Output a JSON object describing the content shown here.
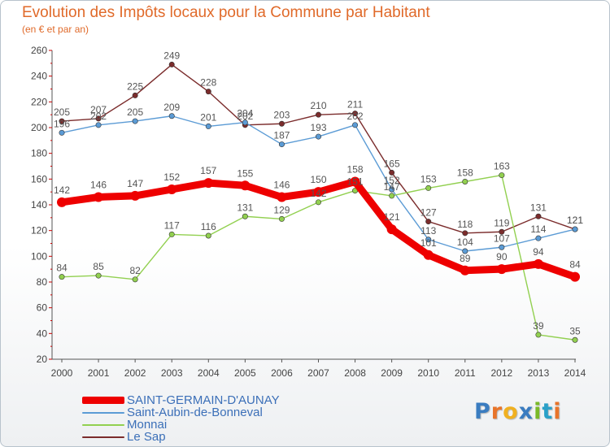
{
  "title": "Evolution des Impôts locaux pour la Commune par Habitant",
  "subtitle": "(en € et par an)",
  "logo": {
    "text": "Proxiti",
    "colors": [
      "#3a7cc0",
      "#e8742a",
      "#f0b020",
      "#3a7cc0",
      "#7ab928",
      "#2aa0c8",
      "#e8742a"
    ]
  },
  "chart_data": {
    "type": "line",
    "x": [
      "2000",
      "2001",
      "2002",
      "2003",
      "2004",
      "2005",
      "2006",
      "2007",
      "2008",
      "2009",
      "2010",
      "2011",
      "2012",
      "2013",
      "2014"
    ],
    "ylim": [
      20,
      260
    ],
    "yticks": [
      20,
      40,
      60,
      80,
      100,
      120,
      140,
      160,
      180,
      200,
      220,
      240,
      260
    ],
    "xlabel": "",
    "ylabel": "",
    "grid": false,
    "series": [
      {
        "name": "SAINT-GERMAIN-D'AUNAY",
        "color": "#ee0000",
        "emphasis": true,
        "values": [
          142,
          146,
          147,
          152,
          157,
          155,
          146,
          150,
          158,
          121,
          101,
          89,
          90,
          94,
          84
        ]
      },
      {
        "name": "Saint-Aubin-de-Bonneval",
        "color": "#5b9bd5",
        "emphasis": false,
        "values": [
          196,
          202,
          205,
          209,
          201,
          204,
          187,
          193,
          202,
          152,
          113,
          104,
          107,
          114,
          121
        ]
      },
      {
        "name": "Monnai",
        "color": "#92d050",
        "emphasis": false,
        "values": [
          84,
          85,
          82,
          117,
          116,
          131,
          129,
          142,
          151,
          147,
          153,
          158,
          163,
          39,
          35
        ]
      },
      {
        "name": "Le Sap",
        "color": "#7b2c2c",
        "emphasis": false,
        "values": [
          205,
          207,
          225,
          249,
          228,
          202,
          203,
          210,
          211,
          165,
          127,
          118,
          119,
          131,
          121
        ]
      }
    ],
    "data_labels": [
      {
        "series": 0,
        "labels": [
          "142",
          "146",
          "147",
          "152",
          "157",
          "155",
          "146",
          "150",
          "158",
          "121",
          "101",
          "89",
          "90",
          "94",
          "84"
        ]
      },
      {
        "series": 1,
        "labels": [
          "196",
          "202",
          "205",
          "209",
          "201",
          "204",
          "187",
          "193",
          "202",
          "152",
          "113",
          "104",
          "107",
          "114",
          "121"
        ]
      },
      {
        "series": 2,
        "labels": [
          "84",
          "85",
          "82",
          "117",
          "116",
          "131",
          "129",
          "142",
          "151",
          "147",
          "153",
          "158",
          "163",
          "39",
          "35"
        ]
      },
      {
        "series": 3,
        "labels": [
          "205",
          "207",
          "225",
          "249",
          "228",
          "202",
          "203",
          "210",
          "211",
          "165",
          "127",
          "118",
          "119",
          "131",
          "121"
        ]
      }
    ],
    "legend": "bottom-left"
  }
}
